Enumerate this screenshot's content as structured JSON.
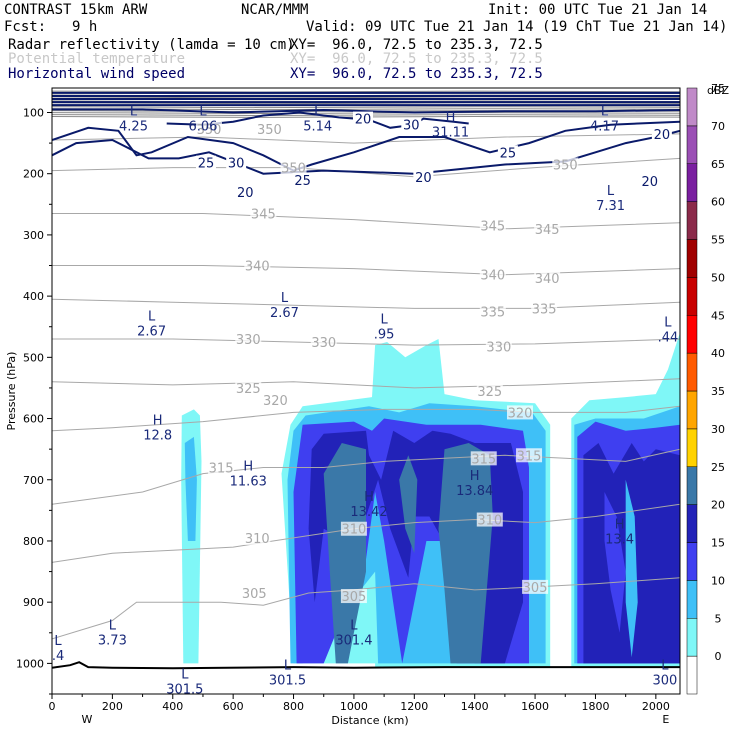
{
  "header": {
    "model": "CONTRAST 15km ARW",
    "org": "NCAR/MMM",
    "init": "Init: 00 UTC Tue 21 Jan 14",
    "fcst_label": "Fcst:",
    "fcst_value": "9 h",
    "valid": "Valid: 09 UTC Tue 21 Jan 14 (19 ChT Tue 21 Jan 14)",
    "field1_name": "Radar reflectivity (lamda = 10 cm)",
    "field1_xy": "XY=  96.0, 72.5 to 235.3, 72.5",
    "field2_name": "Potential temperature",
    "field2_xy": "XY=  96.0, 72.5 to 235.3, 72.5",
    "field3_name": "Horizontal wind speed",
    "field3_xy": "XY=  96.0, 72.5 to 235.3, 72.5"
  },
  "colors": {
    "refl": [
      "#ffffff",
      "#7ff7f7",
      "#3fc0f7",
      "#3f3ff0",
      "#2222b8",
      "#3a78a8",
      "#ffd200",
      "#ffa500",
      "#ff5a00",
      "#ff0000",
      "#c80000",
      "#a00000",
      "#8b2a4a",
      "#7a1fa0",
      "#9b4fb5",
      "#c08ac8"
    ],
    "theta": "#a8a8a8",
    "wind": "#0a1a6a"
  },
  "chart_data": {
    "type": "heatmap",
    "title": "Radar reflectivity / Potential temperature / Horizontal wind speed cross-section",
    "xlabel": "Distance (km)",
    "ylabel": "Pressure (hPa)",
    "xlim": [
      0,
      2080
    ],
    "ylim": [
      1050,
      60
    ],
    "x_ticks": [
      0,
      200,
      400,
      600,
      800,
      1000,
      1200,
      1400,
      1600,
      1800,
      2000
    ],
    "y_ticks": [
      100,
      200,
      300,
      400,
      500,
      600,
      700,
      800,
      900,
      1000
    ],
    "x_end_labels": [
      "W",
      "E"
    ],
    "colorbar": {
      "unit": "dBZ",
      "levels": [
        0,
        5,
        10,
        15,
        20,
        25,
        30,
        35,
        40,
        45,
        50,
        55,
        60,
        65,
        70,
        75
      ]
    },
    "highs_lows": [
      {
        "type": "L",
        "value": "4.25",
        "x": 270,
        "p": 105
      },
      {
        "type": "L",
        "value": "6.06",
        "x": 500,
        "p": 105
      },
      {
        "type": "L",
        "value": "5.14",
        "x": 880,
        "p": 105
      },
      {
        "type": "H",
        "value": "31.11",
        "x": 1320,
        "p": 115
      },
      {
        "type": "L",
        "value": "4.17",
        "x": 1830,
        "p": 105
      },
      {
        "type": "L",
        "value": "7.31",
        "x": 1850,
        "p": 235
      },
      {
        "type": "L",
        "value": "2.67",
        "x": 330,
        "p": 440
      },
      {
        "type": "L",
        "value": "2.67",
        "x": 770,
        "p": 410
      },
      {
        "type": "L",
        "value": ".95",
        "x": 1100,
        "p": 445
      },
      {
        "type": "L",
        "value": ".44",
        "x": 2040,
        "p": 450
      },
      {
        "type": "H",
        "value": "12.8",
        "x": 350,
        "p": 610
      },
      {
        "type": "H",
        "value": "11.63",
        "x": 650,
        "p": 685
      },
      {
        "type": "H",
        "value": "13.42",
        "x": 1050,
        "p": 735
      },
      {
        "type": "H",
        "value": "13.84",
        "x": 1400,
        "p": 700
      },
      {
        "type": "H",
        "value": "13.4",
        "x": 1880,
        "p": 780
      },
      {
        "type": "L",
        "value": "3.73",
        "x": 200,
        "p": 945
      },
      {
        "type": "L",
        "value": "301.4",
        "x": 1000,
        "p": 945
      },
      {
        "type": "L",
        "value": "301.5",
        "x": 440,
        "p": 1025
      },
      {
        "type": "L",
        "value": "301.5",
        "x": 780,
        "p": 1010
      },
      {
        "type": "L",
        "value": "300",
        "x": 2030,
        "p": 1010
      },
      {
        "type": "L",
        "value": ".4",
        "x": 20,
        "p": 970
      }
    ],
    "theta_labels": [
      {
        "value": "350",
        "x": 520,
        "p": 127
      },
      {
        "value": "350",
        "x": 720,
        "p": 127
      },
      {
        "value": "350",
        "x": 1700,
        "p": 185
      },
      {
        "value": "350",
        "x": 800,
        "p": 190
      },
      {
        "value": "345",
        "x": 700,
        "p": 265
      },
      {
        "value": "345",
        "x": 1460,
        "p": 285
      },
      {
        "value": "345",
        "x": 1640,
        "p": 290
      },
      {
        "value": "340",
        "x": 680,
        "p": 350
      },
      {
        "value": "340",
        "x": 1460,
        "p": 365
      },
      {
        "value": "340",
        "x": 1640,
        "p": 370
      },
      {
        "value": "335",
        "x": 1460,
        "p": 425
      },
      {
        "value": "335",
        "x": 1630,
        "p": 420
      },
      {
        "value": "330",
        "x": 650,
        "p": 470
      },
      {
        "value": "330",
        "x": 900,
        "p": 475
      },
      {
        "value": "330",
        "x": 1480,
        "p": 482
      },
      {
        "value": "325",
        "x": 650,
        "p": 550
      },
      {
        "value": "325",
        "x": 1450,
        "p": 555
      },
      {
        "value": "320",
        "x": 740,
        "p": 570
      },
      {
        "value": "320",
        "x": 1550,
        "p": 590
      },
      {
        "value": "315",
        "x": 560,
        "p": 680
      },
      {
        "value": "315",
        "x": 1430,
        "p": 665
      },
      {
        "value": "315",
        "x": 1580,
        "p": 660
      },
      {
        "value": "310",
        "x": 680,
        "p": 795
      },
      {
        "value": "310",
        "x": 1000,
        "p": 780
      },
      {
        "value": "310",
        "x": 1450,
        "p": 765
      },
      {
        "value": "305",
        "x": 670,
        "p": 885
      },
      {
        "value": "305",
        "x": 1000,
        "p": 890
      },
      {
        "value": "305",
        "x": 1600,
        "p": 875
      }
    ],
    "wind_labels": [
      {
        "value": "20",
        "x": 1030,
        "p": 110
      },
      {
        "value": "30",
        "x": 1190,
        "p": 120
      },
      {
        "value": "20",
        "x": 2020,
        "p": 135
      },
      {
        "value": "25",
        "x": 510,
        "p": 182
      },
      {
        "value": "30",
        "x": 610,
        "p": 182
      },
      {
        "value": "25",
        "x": 830,
        "p": 210
      },
      {
        "value": "20",
        "x": 1230,
        "p": 205
      },
      {
        "value": "25",
        "x": 1510,
        "p": 165
      },
      {
        "value": "20",
        "x": 640,
        "p": 230
      },
      {
        "value": "20",
        "x": 1980,
        "p": 212
      }
    ]
  }
}
